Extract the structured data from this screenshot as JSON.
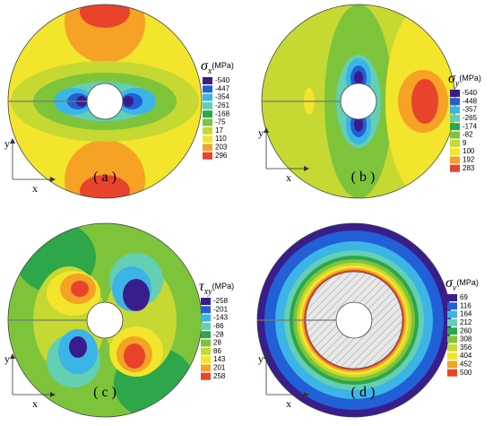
{
  "legend_colors": [
    "#3a1d8c",
    "#2160d6",
    "#3bb5e6",
    "#63cfb3",
    "#2ea64a",
    "#7dc43b",
    "#c5d932",
    "#f3e52b",
    "#f5a225",
    "#e8432b"
  ],
  "panels": [
    {
      "label": "( a )",
      "axes": {
        "y": "y",
        "x": "x"
      },
      "legend": {
        "symbol": "σ",
        "subscript": "x",
        "unit": "(MPa)",
        "values": [
          -540,
          -447,
          -354,
          -261,
          -168,
          -75,
          17,
          110,
          203,
          296
        ]
      }
    },
    {
      "label": "( b )",
      "axes": {
        "y": "y",
        "x": "x"
      },
      "legend": {
        "symbol": "σ",
        "subscript": "y",
        "unit": "(MPa)",
        "values": [
          -540,
          -448,
          -357,
          -265,
          -174,
          -82,
          9,
          100,
          192,
          283
        ]
      }
    },
    {
      "label": "( c )",
      "axes": {
        "y": "y",
        "x": "x"
      },
      "legend": {
        "symbol": "τ",
        "subscript": "xy",
        "unit": "(MPa)",
        "values": [
          -258,
          -201,
          -143,
          -86,
          -28,
          28,
          86,
          143,
          201,
          258
        ]
      }
    },
    {
      "label": "( d )",
      "axes": {
        "y": "y",
        "x": "x"
      },
      "legend": {
        "symbol": "σ",
        "subscript": "v",
        "unit": "(MPa)",
        "values": [
          69,
          116,
          164,
          212,
          260,
          308,
          356,
          404,
          452,
          500
        ]
      }
    }
  ]
}
